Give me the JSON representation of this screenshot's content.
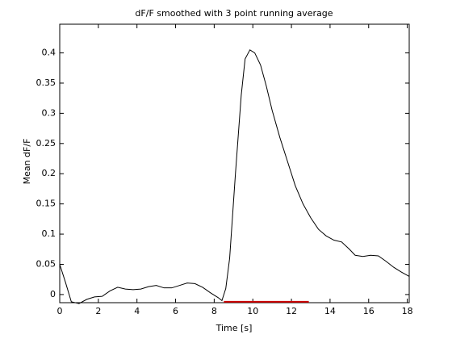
{
  "chart_data": {
    "type": "line",
    "title": "dF/F smoothed with 3 point running average",
    "x_label": "Time [s]",
    "y_label": "Mean dF/F",
    "xlim": [
      0,
      18.1
    ],
    "ylim": [
      -0.0135,
      0.4475
    ],
    "xticks": [
      0,
      2,
      4,
      6,
      8,
      10,
      12,
      14,
      16,
      18
    ],
    "yticks": [
      0,
      0.05,
      0.1,
      0.15,
      0.2,
      0.25,
      0.3,
      0.35,
      0.4
    ],
    "grid": false,
    "series": [
      {
        "color": "#000000",
        "x": [
          0,
          0.3,
          0.6,
          1.0,
          1.4,
          1.8,
          2.2,
          2.6,
          3.0,
          3.4,
          3.8,
          4.2,
          4.6,
          5.0,
          5.4,
          5.8,
          6.2,
          6.6,
          7.0,
          7.4,
          7.8,
          8.2,
          8.4,
          8.6,
          8.8,
          9.1,
          9.4,
          9.6,
          9.85,
          10.1,
          10.4,
          10.7,
          11.0,
          11.4,
          11.8,
          12.2,
          12.6,
          13.0,
          13.4,
          13.8,
          14.2,
          14.6,
          15.0,
          15.3,
          15.7,
          16.1,
          16.5,
          16.9,
          17.3,
          17.7,
          18.1
        ],
        "values": [
          0.05,
          0.02,
          -0.012,
          -0.015,
          -0.008,
          -0.004,
          -0.003,
          0.006,
          0.012,
          0.009,
          0.008,
          0.009,
          0.013,
          0.015,
          0.011,
          0.011,
          0.015,
          0.019,
          0.018,
          0.012,
          0.003,
          -0.005,
          -0.01,
          0.01,
          0.06,
          0.2,
          0.33,
          0.39,
          0.405,
          0.4,
          0.38,
          0.345,
          0.305,
          0.26,
          0.22,
          0.18,
          0.15,
          0.127,
          0.108,
          0.097,
          0.09,
          0.087,
          0.075,
          0.065,
          0.063,
          0.065,
          0.064,
          0.055,
          0.045,
          0.037,
          0.03
        ]
      },
      {
        "color": "#cc0000",
        "x": [
          8.5,
          12.9
        ],
        "values": [
          -0.012,
          -0.012
        ]
      }
    ]
  }
}
